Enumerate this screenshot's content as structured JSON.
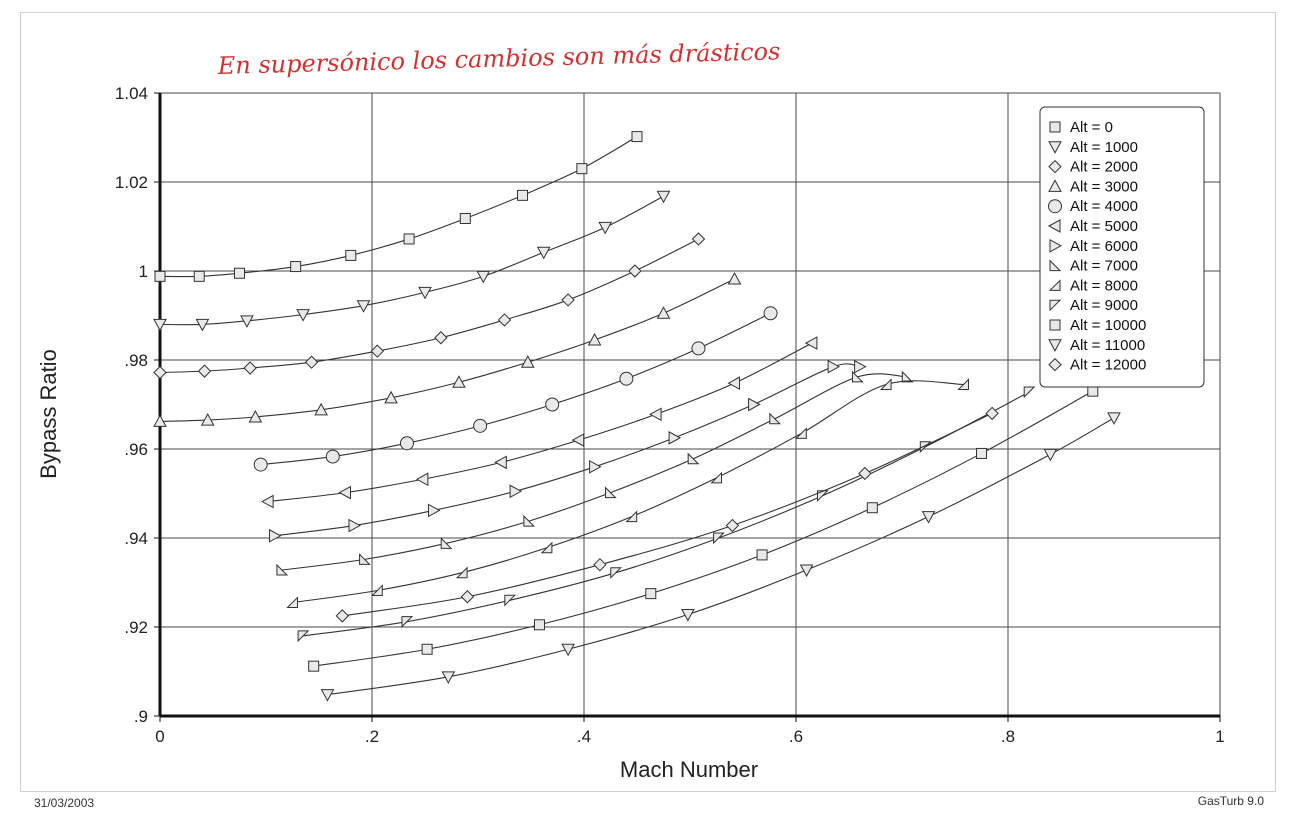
{
  "annotation": "En supersónico los cambios son más drásticos",
  "footer": {
    "date": "31/03/2003",
    "version": "GasTurb 9.0"
  },
  "chart_data": {
    "type": "line",
    "xlabel": "Mach Number",
    "ylabel": "Bypass Ratio",
    "xlim": [
      0,
      1
    ],
    "ylim": [
      0.9,
      1.04
    ],
    "xticks": [
      0,
      0.2,
      0.4,
      0.6,
      0.8,
      1
    ],
    "xtick_labels": [
      "0",
      ".2",
      ".4",
      ".6",
      ".8",
      "1"
    ],
    "yticks": [
      0.9,
      0.92,
      0.94,
      0.96,
      0.98,
      1.0,
      1.02,
      1.04
    ],
    "ytick_labels": [
      ".9",
      ".92",
      ".94",
      ".96",
      ".98",
      "1",
      "1.02",
      "1.04"
    ],
    "grid": true,
    "legend_position": "top-right",
    "series": [
      {
        "name": "Alt = 0",
        "marker": "square",
        "x": [
          0,
          0.037,
          0.075,
          0.128,
          0.18,
          0.235,
          0.288,
          0.342,
          0.398,
          0.45
        ],
        "y": [
          0.9988,
          0.9988,
          0.9995,
          1.001,
          1.0035,
          1.0072,
          1.0118,
          1.017,
          1.023,
          1.0302
        ]
      },
      {
        "name": "Alt = 1000",
        "marker": "triangle-down",
        "x": [
          0,
          0.04,
          0.082,
          0.135,
          0.192,
          0.25,
          0.305,
          0.362,
          0.42,
          0.475
        ],
        "y": [
          0.988,
          0.988,
          0.9888,
          0.9902,
          0.9922,
          0.9952,
          0.9988,
          1.0042,
          1.0098,
          1.0168
        ]
      },
      {
        "name": "Alt = 2000",
        "marker": "diamond",
        "x": [
          0,
          0.042,
          0.085,
          0.143,
          0.205,
          0.265,
          0.325,
          0.385,
          0.448,
          0.508
        ],
        "y": [
          0.9772,
          0.9775,
          0.9782,
          0.9795,
          0.982,
          0.985,
          0.989,
          0.9935,
          1.0,
          1.0072
        ]
      },
      {
        "name": "Alt = 3000",
        "marker": "triangle-up",
        "x": [
          0,
          0.045,
          0.09,
          0.152,
          0.218,
          0.282,
          0.347,
          0.41,
          0.475,
          0.542
        ],
        "y": [
          0.9662,
          0.9665,
          0.9672,
          0.9688,
          0.9715,
          0.975,
          0.9795,
          0.9845,
          0.9905,
          0.9982
        ]
      },
      {
        "name": "Alt = 4000",
        "marker": "circle",
        "x": [
          0.095,
          0.163,
          0.233,
          0.302,
          0.37,
          0.44,
          0.508,
          0.576
        ],
        "y": [
          0.9565,
          0.9583,
          0.9613,
          0.9652,
          0.97,
          0.9758,
          0.9826,
          0.9905
        ]
      },
      {
        "name": "Alt = 5000",
        "marker": "triangle-left",
        "x": [
          0.102,
          0.175,
          0.248,
          0.322,
          0.395,
          0.468,
          0.542,
          0.615
        ],
        "y": [
          0.9482,
          0.9502,
          0.9532,
          0.957,
          0.962,
          0.9678,
          0.9748,
          0.9838
        ]
      },
      {
        "name": "Alt = 6000",
        "marker": "triangle-right",
        "x": [
          0.108,
          0.183,
          0.258,
          0.335,
          0.41,
          0.485,
          0.56,
          0.635,
          0.66
        ],
        "y": [
          0.9405,
          0.9428,
          0.9462,
          0.9505,
          0.956,
          0.9625,
          0.97,
          0.9785,
          0.9785
        ]
      },
      {
        "name": "Alt = 7000",
        "marker": "triangle-rt",
        "x": [
          0.115,
          0.193,
          0.27,
          0.348,
          0.425,
          0.503,
          0.58,
          0.658,
          0.705
        ],
        "y": [
          0.9328,
          0.9352,
          0.9388,
          0.9438,
          0.9502,
          0.9578,
          0.9668,
          0.9762,
          0.9762
        ]
      },
      {
        "name": "Alt = 8000",
        "marker": "triangle-lt",
        "x": [
          0.125,
          0.205,
          0.285,
          0.365,
          0.445,
          0.525,
          0.605,
          0.685,
          0.758
        ],
        "y": [
          0.9255,
          0.9282,
          0.9322,
          0.9378,
          0.9448,
          0.9535,
          0.9635,
          0.9745,
          0.9745
        ]
      },
      {
        "name": "Alt = 9000",
        "marker": "triangle-lb",
        "x": [
          0.135,
          0.233,
          0.33,
          0.43,
          0.527,
          0.625,
          0.722,
          0.82
        ],
        "y": [
          0.918,
          0.9212,
          0.926,
          0.9322,
          0.94,
          0.9495,
          0.9605,
          0.9728
        ]
      },
      {
        "name": "Alt = 10000",
        "marker": "square",
        "x": [
          0.145,
          0.252,
          0.358,
          0.463,
          0.568,
          0.672,
          0.775,
          0.88
        ],
        "y": [
          0.9112,
          0.915,
          0.9205,
          0.9275,
          0.9362,
          0.9468,
          0.959,
          0.973
        ]
      },
      {
        "name": "Alt = 11000",
        "marker": "triangle-down",
        "x": [
          0.158,
          0.272,
          0.385,
          0.498,
          0.61,
          0.725,
          0.84,
          0.9
        ],
        "y": [
          0.9048,
          0.9088,
          0.915,
          0.9228,
          0.9328,
          0.9448,
          0.9588,
          0.967
        ]
      },
      {
        "name": "Alt = 12000",
        "marker": "diamond",
        "x": [
          0.172,
          0.29,
          0.415,
          0.54,
          0.665,
          0.785
        ],
        "y": [
          0.9225,
          0.9268,
          0.934,
          0.9428,
          0.9545,
          0.968
        ]
      }
    ]
  }
}
